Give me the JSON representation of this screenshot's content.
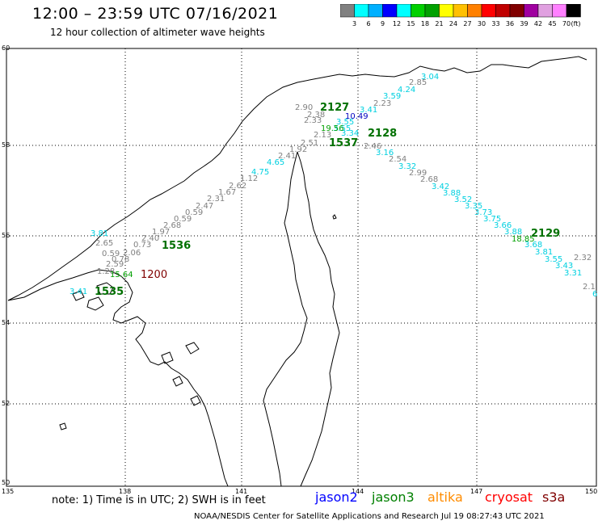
{
  "header": {
    "title": "12:00 – 23:59 UTC 07/16/2021",
    "subtitle": "12 hour collection of altimeter wave heights"
  },
  "legend": {
    "colors": [
      "#808080",
      "#00ffff",
      "#00b0ff",
      "#0000ff",
      "#00ffff",
      "#00d000",
      "#00a000",
      "#ffff00",
      "#ffc000",
      "#ff8000",
      "#ff0000",
      "#c00000",
      "#800000",
      "#a000a0",
      "#e0a0e0",
      "#ff80ff",
      "#000000"
    ],
    "labels": [
      "3",
      "6",
      "9",
      "12",
      "15",
      "18",
      "21",
      "24",
      "27",
      "30",
      "33",
      "36",
      "39",
      "42",
      "45",
      "70"
    ],
    "unit": "(ft)"
  },
  "axes": {
    "lon_labels": [
      "135",
      "138",
      "141",
      "144",
      "147",
      "150"
    ],
    "lat_labels": [
      "60",
      "58",
      "56",
      "54",
      "52",
      "50"
    ]
  },
  "time_labels": [
    {
      "text": "2127",
      "color": "#007000"
    },
    {
      "text": "2128",
      "color": "#007000"
    },
    {
      "text": "1537",
      "color": "#007000"
    },
    {
      "text": "1536",
      "color": "#007000"
    },
    {
      "text": "1535",
      "color": "#007000"
    },
    {
      "text": "1200",
      "color": "#800000"
    },
    {
      "text": "2129",
      "color": "#007000"
    }
  ],
  "wave_heights": {
    "gray": [
      "2.85",
      "2.23",
      "2.90",
      "2.38",
      "2.33",
      "2.13",
      "2.46",
      "2.51",
      "1.92",
      "2.41",
      "2.54",
      "2.99",
      "2.68",
      "1.12",
      "2.62",
      "1.67",
      "2.31",
      "2.47",
      "0.59",
      "0.59",
      "2.68",
      "1.97",
      "2.40",
      "0.73",
      "2.06",
      "0.59",
      "0.78",
      "2.65",
      "2.59",
      "1.28",
      "2.32",
      "2.1"
    ],
    "cyan": [
      "3.04",
      "4.24",
      "3.59",
      "3.41",
      "3.55",
      "3.55",
      "3.34",
      "3.16",
      "4.65",
      "4.75",
      "3.32",
      "3.42",
      "3.88",
      "3.52",
      "3.35",
      "3.73",
      "3.75",
      "3.66",
      "3.88",
      "3.68",
      "3.81",
      "3.55",
      "3.43",
      "3.31",
      "6",
      "3.81",
      "3.41"
    ],
    "blue": [
      "10.49"
    ],
    "green": [
      "19.56",
      "18.85",
      "15.64"
    ]
  },
  "note": "note: 1) Time is in UTC; 2) SWH is in feet",
  "satellites": [
    {
      "name": "jason2",
      "color": "#0000ff"
    },
    {
      "name": "jason3",
      "color": "#008000"
    },
    {
      "name": "altika",
      "color": "#ff8c00"
    },
    {
      "name": "cryosat",
      "color": "#ff0000"
    },
    {
      "name": "s3a",
      "color": "#800000"
    }
  ],
  "footer": "NOAA/NESDIS Center for Satellite Applications and Research   Jul 19 08:27:43 UTC 2021"
}
